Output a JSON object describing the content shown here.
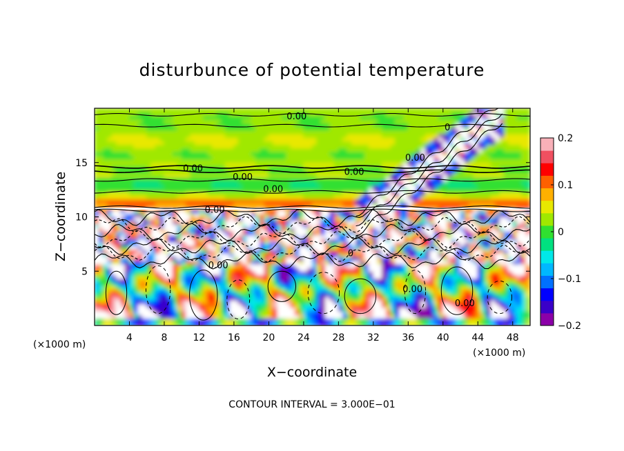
{
  "chart_data": {
    "type": "heatmap",
    "title": "disturbunce of potential temperature",
    "xlabel": "X−coordinate",
    "ylabel": "Z−coordinate",
    "x_unit_label_left": "(×1000 m)",
    "x_unit_label_right": "(×1000 m)",
    "x_ticks": [
      4,
      8,
      12,
      16,
      20,
      24,
      28,
      32,
      36,
      40,
      44,
      48
    ],
    "y_ticks": [
      5,
      10,
      15
    ],
    "xlim": [
      0,
      50
    ],
    "ylim": [
      0,
      20
    ],
    "colorbar": {
      "ticks": [
        "0.2",
        "0.1",
        "0",
        "−0.1",
        "−0.2"
      ],
      "tick_values": [
        0.2,
        0.1,
        0,
        -0.1,
        -0.2
      ],
      "range": [
        -0.2,
        0.2
      ],
      "colors": [
        "#8b00a8",
        "#3a00c8",
        "#0000ff",
        "#0070ff",
        "#00b8ff",
        "#00e8e8",
        "#00e080",
        "#30e030",
        "#a0e800",
        "#e8e800",
        "#ffb000",
        "#ff6000",
        "#ff0000",
        "#f05060",
        "#f8b0b8"
      ]
    },
    "contour_labels": [
      {
        "text": "0.00",
        "x": 23.2,
        "y": 19.3
      },
      {
        "text": "0.00",
        "x": 36.8,
        "y": 15.5
      },
      {
        "text": "0.00",
        "x": 11.3,
        "y": 14.5
      },
      {
        "text": "0.00",
        "x": 17.0,
        "y": 13.7
      },
      {
        "text": "0.00",
        "x": 29.8,
        "y": 14.2
      },
      {
        "text": "0.00",
        "x": 20.5,
        "y": 12.6
      },
      {
        "text": "0.00",
        "x": 13.8,
        "y": 10.7
      },
      {
        "text": "0.00",
        "x": 14.2,
        "y": 5.6
      },
      {
        "text": "0.00",
        "x": 36.5,
        "y": 3.4
      },
      {
        "text": "0.00",
        "x": 42.5,
        "y": 2.1
      },
      {
        "text": "0",
        "x": 29.4,
        "y": 6.7
      },
      {
        "text": "0",
        "x": 40.5,
        "y": 18.3
      }
    ],
    "footnote": "CONTOUR INTERVAL = 3.000E−01",
    "grid": false
  }
}
